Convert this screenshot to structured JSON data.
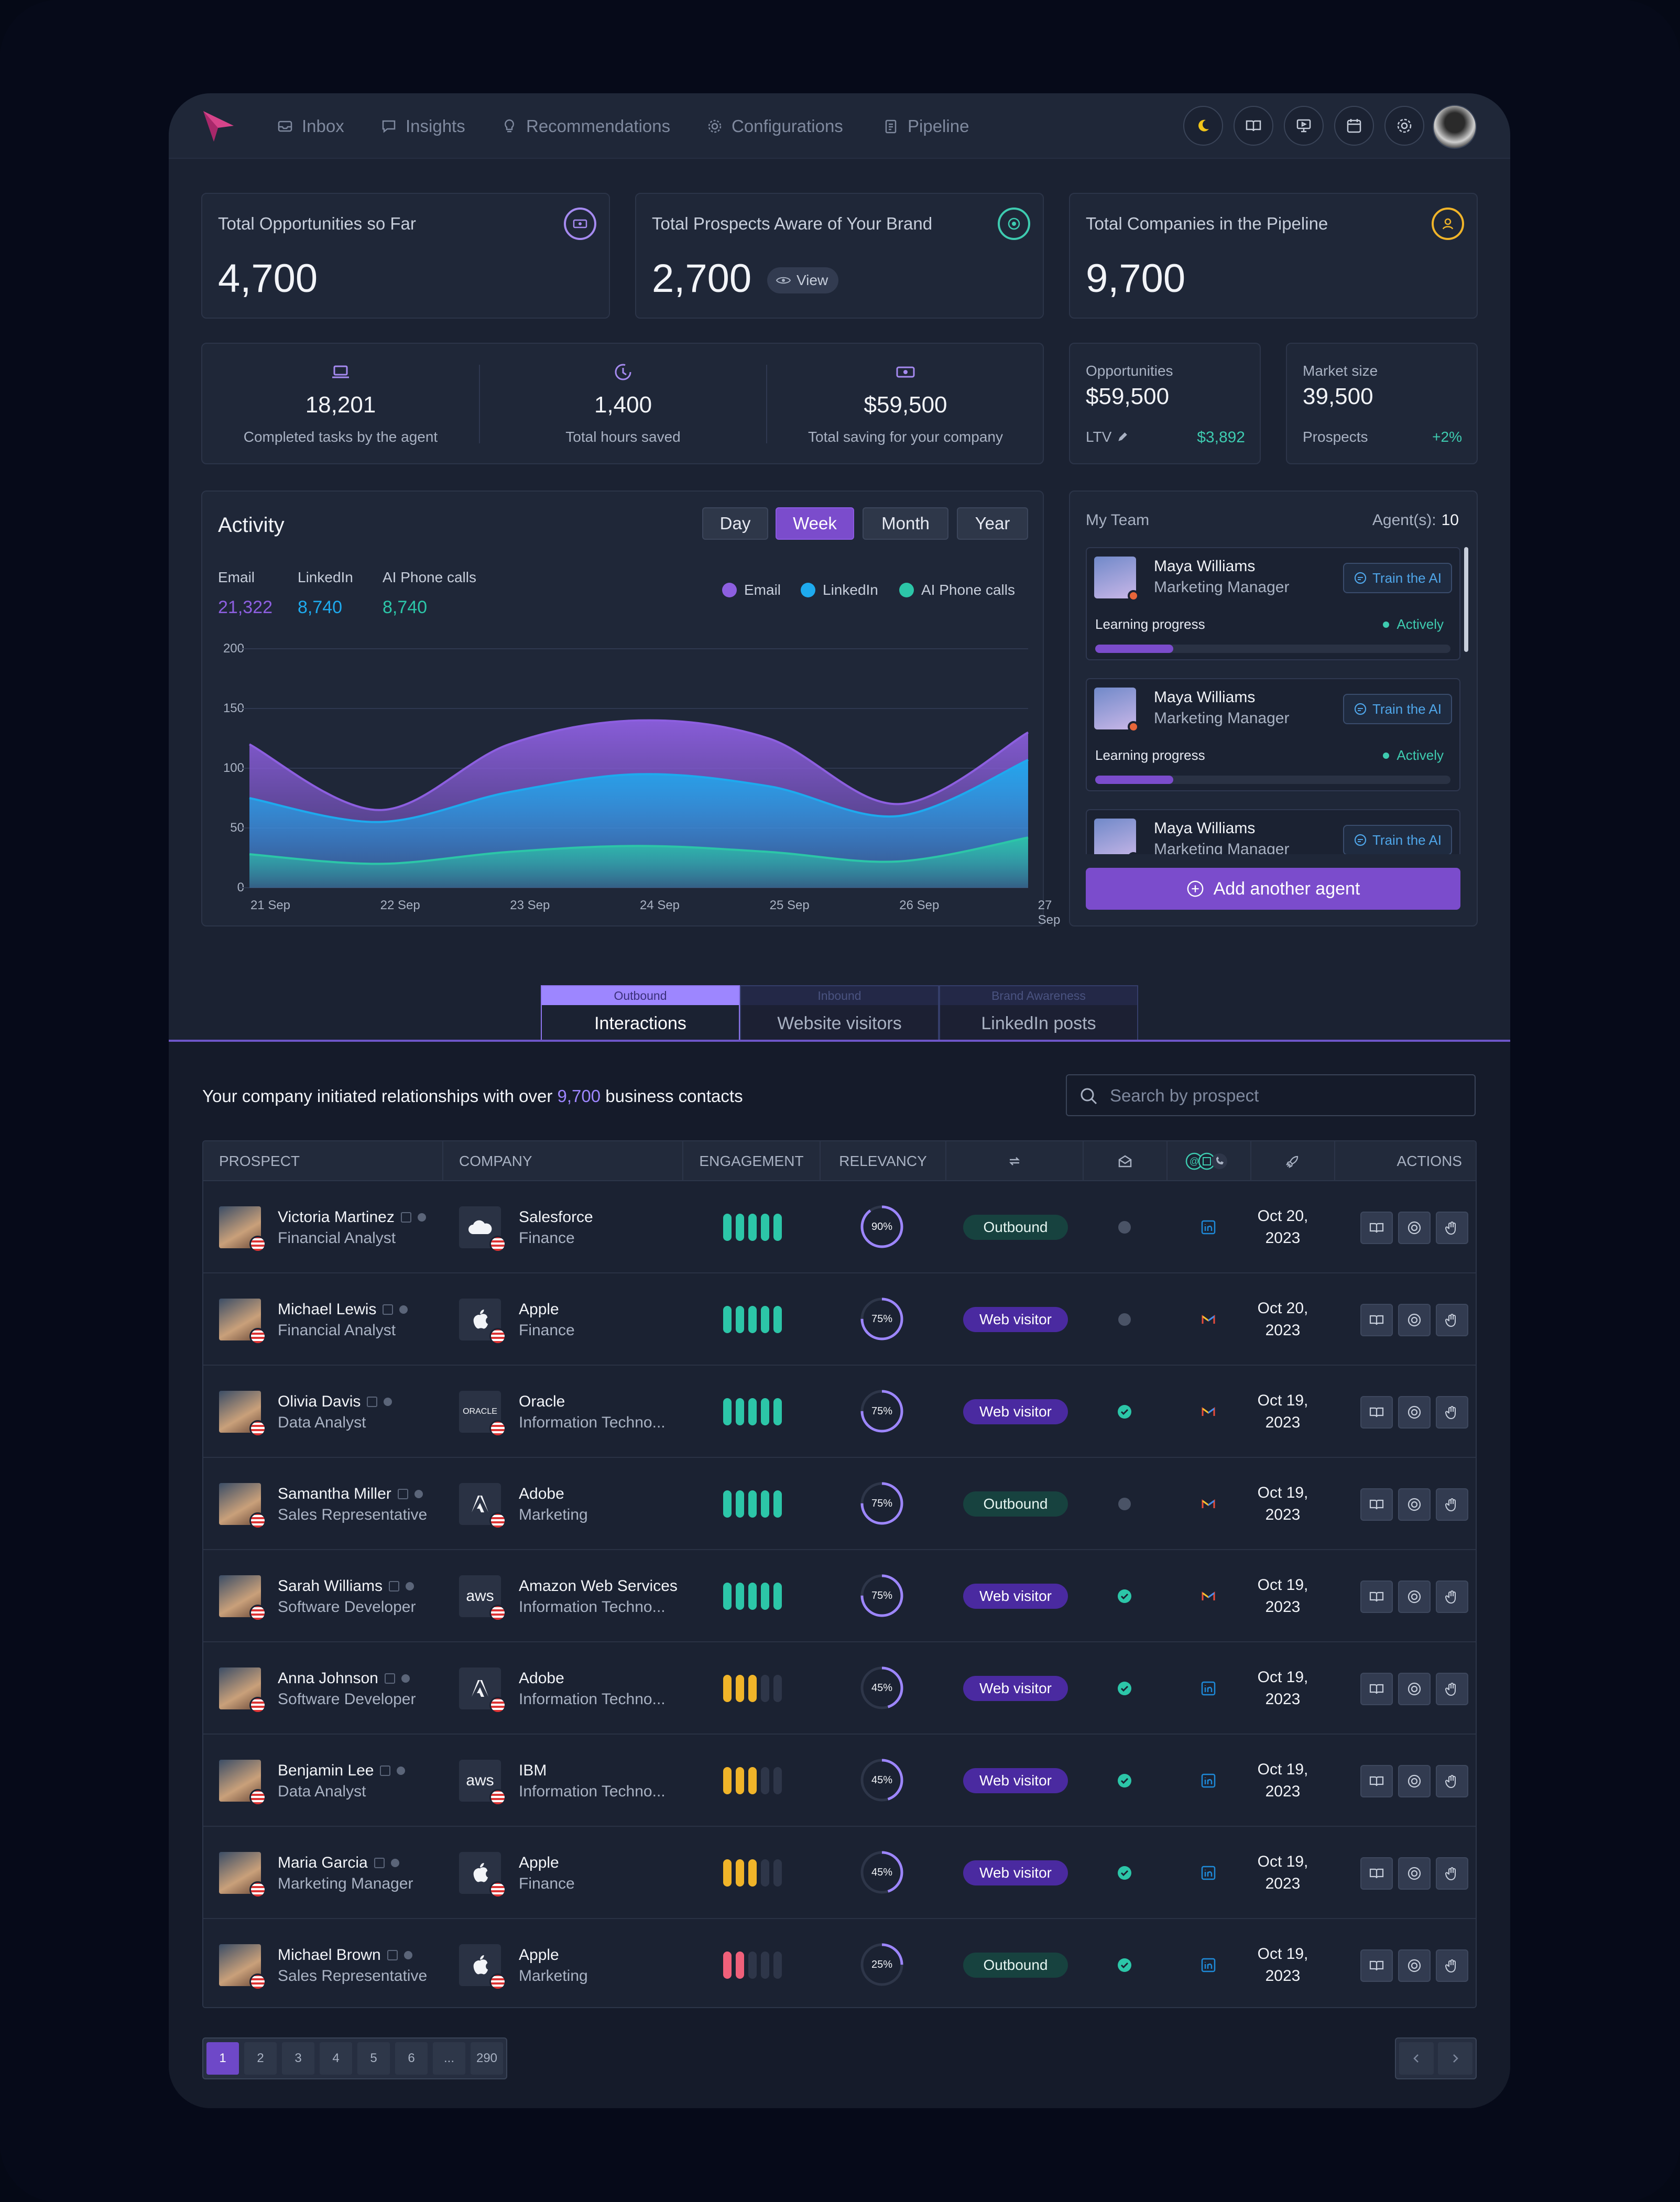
{
  "nav": {
    "items": [
      {
        "label": "Inbox",
        "icon": "inbox-icon"
      },
      {
        "label": "Insights",
        "icon": "chat-icon"
      },
      {
        "label": "Recommendations",
        "icon": "bulb-icon"
      },
      {
        "label": "Configurations",
        "icon": "gear-icon"
      },
      {
        "label": "Pipeline",
        "icon": "clipboard-icon"
      }
    ],
    "right_icons": [
      "moon-icon",
      "book-icon",
      "presentation-icon",
      "calendar-icon",
      "settings-icon"
    ]
  },
  "stats": [
    {
      "title": "Total Opportunities so Far",
      "value": "4,700",
      "icon": "money-icon",
      "color": "#a58af0"
    },
    {
      "title": "Total Prospects Aware of Your Brand",
      "value": "2,700",
      "icon": "target-icon",
      "color": "#3ecbb0",
      "view_label": "View"
    },
    {
      "title": "Total Companies in the Pipeline",
      "value": "9,700",
      "icon": "building-icon",
      "color": "#f0b429"
    }
  ],
  "agent_stats": [
    {
      "value": "18,201",
      "label": "Completed tasks by the agent",
      "icon": "laptop-icon"
    },
    {
      "value": "1,400",
      "label": "Total hours saved",
      "icon": "clock-icon"
    },
    {
      "value": "$59,500",
      "label": "Total saving for your company",
      "icon": "cash-icon"
    }
  ],
  "opportunities": {
    "label": "Opportunities",
    "value": "$59,500",
    "ltv_label": "LTV",
    "ltv_value": "$3,892"
  },
  "market": {
    "label": "Market size",
    "value": "39,500",
    "prospects_label": "Prospects",
    "change": "+2%"
  },
  "activity": {
    "title": "Activity",
    "periods": [
      "Day",
      "Week",
      "Month",
      "Year"
    ],
    "active_period": "Week",
    "metrics": [
      {
        "label": "Email",
        "value": "21,322",
        "color": "#8d5fe0"
      },
      {
        "label": "LinkedIn",
        "value": "8,740",
        "color": "#1eaaee"
      },
      {
        "label": "AI Phone calls",
        "value": "8,740",
        "color": "#2cc6a8"
      }
    ]
  },
  "chart_data": {
    "type": "area",
    "x": [
      "21 Sep",
      "22 Sep",
      "23 Sep",
      "24 Sep",
      "25 Sep",
      "26 Sep",
      "27 Sep"
    ],
    "ylim": [
      0,
      200
    ],
    "yticks": [
      0,
      50,
      100,
      150,
      200
    ],
    "series": [
      {
        "name": "Email",
        "color": "#8d5fe0",
        "values": [
          120,
          65,
          120,
          140,
          125,
          70,
          130
        ]
      },
      {
        "name": "LinkedIn",
        "color": "#1eaaee",
        "values": [
          75,
          55,
          80,
          95,
          85,
          60,
          107
        ]
      },
      {
        "name": "AI Phone calls",
        "color": "#2cc6a8",
        "values": [
          28,
          20,
          30,
          35,
          30,
          22,
          42
        ]
      }
    ],
    "legend": "top-right",
    "grid": true
  },
  "team": {
    "title": "My Team",
    "agents_label": "Agent(s):",
    "agents_count": "10",
    "members": [
      {
        "name": "Maya Williams",
        "role": "Marketing Manager",
        "train_label": "Train the AI",
        "progress_label": "Learning progress",
        "status": "Actively",
        "progress": 0.22
      },
      {
        "name": "Maya Williams",
        "role": "Marketing Manager",
        "train_label": "Train the AI",
        "progress_label": "Learning progress",
        "status": "Actively",
        "progress": 0.22
      },
      {
        "name": "Maya Williams",
        "role": "Marketing Manager",
        "train_label": "Train the AI",
        "progress_label": "Learning progress",
        "status": "Actively",
        "progress": 0.22
      }
    ],
    "add_label": "Add another agent"
  },
  "tabs": [
    {
      "caption": "Outbound",
      "label": "Interactions",
      "active": true
    },
    {
      "caption": "Inbound",
      "label": "Website visitors",
      "active": false
    },
    {
      "caption": "Brand Awareness",
      "label": "LinkedIn posts",
      "active": false
    }
  ],
  "intro": {
    "prefix": "Your company initiated relationships with over",
    "count": "9,700",
    "suffix": "business contacts"
  },
  "search": {
    "placeholder": "Search by prospect"
  },
  "table": {
    "headers": [
      "PROSPECT",
      "COMPANY",
      "ENGAGEMENT",
      "RELEVANCY",
      "",
      "",
      "",
      "",
      "ACTIONS"
    ],
    "rows": [
      {
        "name": "Victoria Martinez",
        "role": "Financial Analyst",
        "company": "Salesforce",
        "industry": "Finance",
        "logo": "cloud",
        "engagement": 5,
        "eng_color": "#2cc6a8",
        "relevancy": "90%",
        "rel_frac": 0.9,
        "type": "Outbound",
        "email_ok": false,
        "channel": "linkedin",
        "date1": "Oct 20,",
        "date2": "2023"
      },
      {
        "name": "Michael Lewis",
        "role": "Financial Analyst",
        "company": "Apple",
        "industry": "Finance",
        "logo": "apple",
        "engagement": 5,
        "eng_color": "#2cc6a8",
        "relevancy": "75%",
        "rel_frac": 0.75,
        "type": "Web visitor",
        "email_ok": false,
        "channel": "gmail",
        "date1": "Oct 20,",
        "date2": "2023"
      },
      {
        "name": "Olivia Davis",
        "role": "Data Analyst",
        "company": "Oracle",
        "industry": "Information Techno...",
        "logo": "ORACLE",
        "engagement": 5,
        "eng_color": "#2cc6a8",
        "relevancy": "75%",
        "rel_frac": 0.75,
        "type": "Web visitor",
        "email_ok": true,
        "channel": "gmail",
        "date1": "Oct 19,",
        "date2": "2023"
      },
      {
        "name": "Samantha Miller",
        "role": "Sales Representative",
        "company": "Adobe",
        "industry": "Marketing",
        "logo": "adobe",
        "engagement": 5,
        "eng_color": "#2cc6a8",
        "relevancy": "75%",
        "rel_frac": 0.75,
        "type": "Outbound",
        "email_ok": false,
        "channel": "gmail",
        "date1": "Oct 19,",
        "date2": "2023"
      },
      {
        "name": "Sarah Williams",
        "role": "Software Developer",
        "company": "Amazon Web Services",
        "industry": "Information Techno...",
        "logo": "aws",
        "engagement": 5,
        "eng_color": "#2cc6a8",
        "relevancy": "75%",
        "rel_frac": 0.75,
        "type": "Web visitor",
        "email_ok": true,
        "channel": "gmail",
        "date1": "Oct 19,",
        "date2": "2023"
      },
      {
        "name": "Anna Johnson",
        "role": "Software Developer",
        "company": "Adobe",
        "industry": "Information Techno...",
        "logo": "adobe",
        "engagement": 3,
        "eng_color": "#f0b429",
        "relevancy": "45%",
        "rel_frac": 0.45,
        "type": "Web visitor",
        "email_ok": true,
        "channel": "linkedin",
        "date1": "Oct 19,",
        "date2": "2023"
      },
      {
        "name": "Benjamin Lee",
        "role": "Data Analyst",
        "company": "IBM",
        "industry": "Information Techno...",
        "logo": "aws",
        "engagement": 3,
        "eng_color": "#f0b429",
        "relevancy": "45%",
        "rel_frac": 0.45,
        "type": "Web visitor",
        "email_ok": true,
        "channel": "linkedin",
        "date1": "Oct 19,",
        "date2": "2023"
      },
      {
        "name": "Maria Garcia",
        "role": "Marketing Manager",
        "company": "Apple",
        "industry": "Finance",
        "logo": "apple",
        "engagement": 3,
        "eng_color": "#f0b429",
        "relevancy": "45%",
        "rel_frac": 0.45,
        "type": "Web visitor",
        "email_ok": true,
        "channel": "linkedin",
        "date1": "Oct 19,",
        "date2": "2023"
      },
      {
        "name": "Michael Brown",
        "role": "Sales Representative",
        "company": "Apple",
        "industry": "Marketing",
        "logo": "apple",
        "engagement": 2,
        "eng_color": "#f0607a",
        "relevancy": "25%",
        "rel_frac": 0.25,
        "type": "Outbound",
        "email_ok": true,
        "channel": "linkedin",
        "date1": "Oct 19,",
        "date2": "2023"
      }
    ]
  },
  "pagination": {
    "pages": [
      "1",
      "2",
      "3",
      "4",
      "5",
      "6",
      "...",
      "290"
    ],
    "active": "1"
  }
}
